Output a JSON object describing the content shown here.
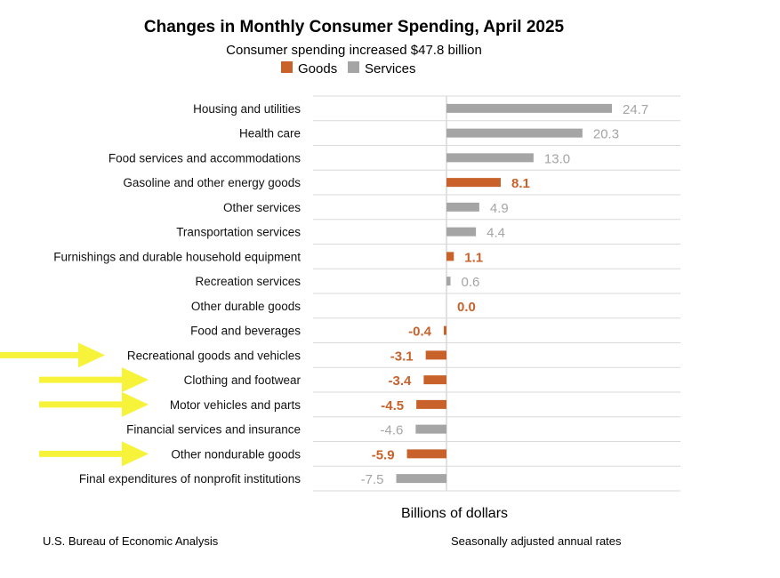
{
  "chart_data": {
    "type": "bar",
    "orientation": "horizontal",
    "title": "Changes in Monthly Consumer Spending, April 2025",
    "subtitle": "Consumer spending increased $47.8 billion",
    "xlabel": "Billions of dollars",
    "legend": [
      {
        "name": "Goods",
        "color": "#c8622a"
      },
      {
        "name": "Services",
        "color": "#a5a5a5"
      }
    ],
    "legend_position": "top",
    "xlim": [
      -20,
      35
    ],
    "categories": [
      "Housing and utilities",
      "Health care",
      "Food services and accommodations",
      "Gasoline and other energy goods",
      "Other services",
      "Transportation services",
      "Furnishings and durable household equipment",
      "Recreation services",
      "Other durable goods",
      "Food and beverages",
      "Recreational goods and vehicles",
      "Clothing and footwear",
      "Motor vehicles and parts",
      "Financial services and insurance",
      "Other nondurable goods",
      "Final expenditures of nonprofit institutions"
    ],
    "values": [
      24.7,
      20.3,
      13.0,
      8.1,
      4.9,
      4.4,
      1.1,
      0.6,
      0.0,
      -0.4,
      -3.1,
      -3.4,
      -4.5,
      -4.6,
      -5.9,
      -7.5
    ],
    "value_labels": [
      "24.7",
      "20.3",
      "13.0",
      "8.1",
      "4.9",
      "4.4",
      "1.1",
      "0.6",
      "0.0",
      "-0.4",
      "-3.1",
      "-3.4",
      "-4.5",
      "-4.6",
      "-5.9",
      "-7.5"
    ],
    "series_type": [
      "Services",
      "Services",
      "Services",
      "Goods",
      "Services",
      "Services",
      "Goods",
      "Services",
      "Goods",
      "Goods",
      "Goods",
      "Goods",
      "Goods",
      "Services",
      "Goods",
      "Services"
    ],
    "highlighted_categories": [
      "Recreational goods and vehicles",
      "Clothing and footwear",
      "Motor vehicles and parts",
      "Other nondurable goods"
    ],
    "source": "U.S. Bureau of Economic Analysis",
    "note": "Seasonally adjusted annual rates"
  },
  "colors": {
    "goods": "#c8622a",
    "services": "#a5a5a5",
    "arrow": "#f7f23a",
    "grid": "#d9d9d9"
  }
}
